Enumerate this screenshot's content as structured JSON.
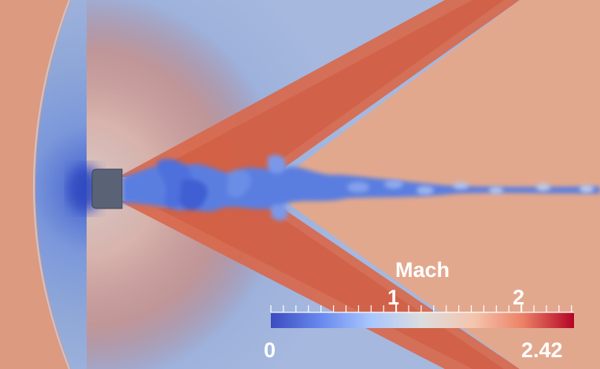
{
  "colorbar": {
    "title": "Mach",
    "min_label": "0",
    "max_label": "2.42",
    "tick_labels": [
      "1",
      "2"
    ],
    "min_value": 0,
    "max_value": 2.42,
    "tick_values": [
      1,
      2
    ],
    "colormap": [
      "#3b4cc0",
      "#7396f5",
      "#b0cbfc",
      "#dddddd",
      "#f6bfa6",
      "#e7745b",
      "#b40426"
    ]
  },
  "colors": {
    "freestream": "#dc9a80",
    "shock_layer": "#88a4d8",
    "stagnation": "#3850c4",
    "body": "#5a6275",
    "wake_interior": "#e2a88e",
    "expansion_fan": "#d4624a"
  },
  "icons": [
    "blunt-body-icon",
    "bow-shock-icon",
    "turbulent-wake-icon"
  ]
}
